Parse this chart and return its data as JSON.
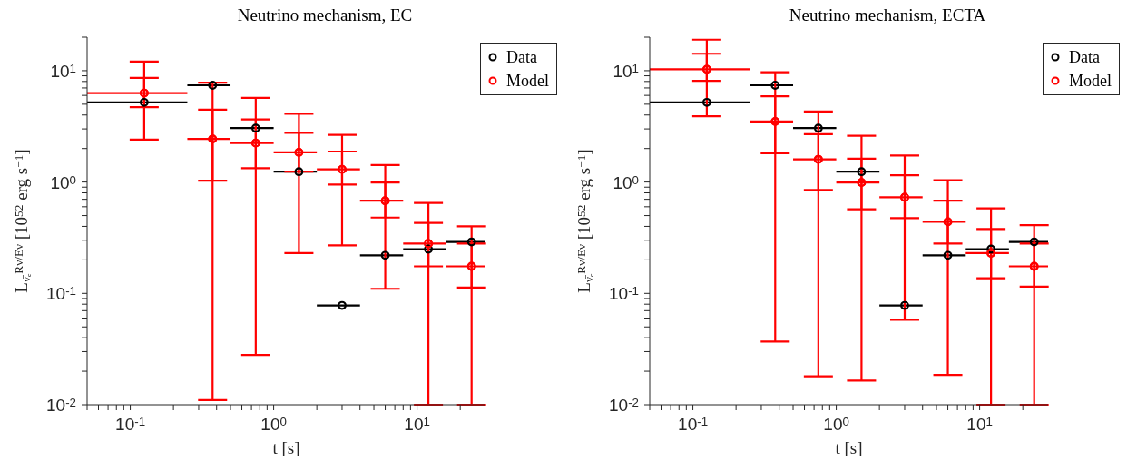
{
  "chart_data": [
    {
      "type": "scatter",
      "title": "Neutrino mechanism, EC",
      "xlabel": "t [s]",
      "ylabel": "L$_{ν̄ₑ}$$^{Rν/Eν}$ [10$^{52}$ erg s$^{−1}$]",
      "log": "xy",
      "legend": "top right",
      "xlim": [
        0.05,
        30
      ],
      "ylim": [
        0.01,
        20
      ],
      "xticks": [
        {
          "value": 0.05,
          "label": null
        },
        {
          "value": 0.06,
          "label": null
        },
        {
          "value": 0.07,
          "label": null
        },
        {
          "value": 0.08,
          "label": null
        },
        {
          "value": 0.09,
          "label": null
        },
        {
          "value": 0.1,
          "label": "10$^{-1}$"
        },
        {
          "value": 0.2,
          "label": null
        },
        {
          "value": 0.3,
          "label": null
        },
        {
          "value": 0.4,
          "label": null
        },
        {
          "value": 0.5,
          "label": null
        },
        {
          "value": 0.6,
          "label": null
        },
        {
          "value": 0.7,
          "label": null
        },
        {
          "value": 0.8,
          "label": null
        },
        {
          "value": 0.9,
          "label": null
        },
        {
          "value": 1,
          "label": "10$^{0}$"
        },
        {
          "value": 2,
          "label": null
        },
        {
          "value": 3,
          "label": null
        },
        {
          "value": 4,
          "label": null
        },
        {
          "value": 5,
          "label": null
        },
        {
          "value": 6,
          "label": null
        },
        {
          "value": 7,
          "label": null
        },
        {
          "value": 8,
          "label": null
        },
        {
          "value": 9,
          "label": null
        },
        {
          "value": 10,
          "label": "10$^{1}$"
        },
        {
          "value": 20,
          "label": null
        }
      ],
      "yticks": [
        {
          "value": 0.01,
          "label": "10$^{-2}$"
        },
        {
          "value": 0.02,
          "label": null
        },
        {
          "value": 0.03,
          "label": null
        },
        {
          "value": 0.04,
          "label": null
        },
        {
          "value": 0.05,
          "label": null
        },
        {
          "value": 0.06,
          "label": null
        },
        {
          "value": 0.07,
          "label": null
        },
        {
          "value": 0.08,
          "label": null
        },
        {
          "value": 0.09,
          "label": null
        },
        {
          "value": 0.1,
          "label": "10$^{-1}$"
        },
        {
          "value": 0.2,
          "label": null
        },
        {
          "value": 0.3,
          "label": null
        },
        {
          "value": 0.4,
          "label": null
        },
        {
          "value": 0.5,
          "label": null
        },
        {
          "value": 0.6,
          "label": null
        },
        {
          "value": 0.7,
          "label": null
        },
        {
          "value": 0.8,
          "label": null
        },
        {
          "value": 0.9,
          "label": null
        },
        {
          "value": 1,
          "label": "10$^{0}$"
        },
        {
          "value": 2,
          "label": null
        },
        {
          "value": 3,
          "label": null
        },
        {
          "value": 4,
          "label": null
        },
        {
          "value": 5,
          "label": null
        },
        {
          "value": 6,
          "label": null
        },
        {
          "value": 7,
          "label": null
        },
        {
          "value": 8,
          "label": null
        },
        {
          "value": 9,
          "label": null
        },
        {
          "value": 10,
          "label": "10$^{1}$"
        },
        {
          "value": 20,
          "label": null
        }
      ],
      "series": [
        {
          "name": "Data",
          "marker": "circle",
          "color": "#000000",
          "x": [
            0.125,
            0.375,
            0.75,
            1.5,
            3,
            6,
            12,
            24
          ],
          "values": [
            5.2,
            7.4,
            3.05,
            1.24,
            0.078,
            0.22,
            0.25,
            0.29
          ],
          "xerrors": [
            [
              0.05,
              0.25
            ],
            [
              0.25,
              0.5
            ],
            [
              0.5,
              1
            ],
            [
              1,
              2
            ],
            [
              2,
              4
            ],
            [
              4,
              8
            ],
            [
              8,
              16
            ],
            [
              16,
              30
            ]
          ]
        },
        {
          "name": "Model",
          "marker": "circle",
          "color": "#ff0000",
          "x": [
            0.125,
            0.375,
            0.75,
            1.5,
            3,
            6,
            12,
            24
          ],
          "values": [
            6.3,
            2.44,
            2.24,
            1.85,
            1.3,
            0.68,
            0.28,
            0.175
          ],
          "xerrors": [
            [
              0.05,
              0.25
            ],
            [
              0.25,
              0.5
            ],
            [
              0.5,
              1
            ],
            [
              1,
              2
            ],
            [
              2,
              4
            ],
            [
              4,
              8
            ],
            [
              8,
              16
            ],
            [
              16,
              30
            ]
          ],
          "errors": [
            [
              2.4,
              12.1
            ],
            [
              0.011,
              7.8
            ],
            [
              0.028,
              5.7
            ],
            [
              0.23,
              4.1
            ],
            [
              0.27,
              2.65
            ],
            [
              0.11,
              1.42
            ],
            [
              0.01,
              0.65
            ],
            [
              0.01,
              0.4
            ]
          ]
        },
        {
          "marker": "circle",
          "color": "#ff0000",
          "x": [
            0.125,
            0.375,
            0.75,
            1.5,
            3,
            6,
            12,
            24
          ],
          "values": [
            6.3,
            2.44,
            2.24,
            1.85,
            1.3,
            0.68,
            0.28,
            0.175
          ],
          "errors": [
            [
              4.7,
              8.6
            ],
            [
              1.03,
              4.47
            ],
            [
              1.33,
              3.65
            ],
            [
              1.24,
              2.77
            ],
            [
              0.95,
              1.88
            ],
            [
              0.48,
              0.99
            ],
            [
              0.175,
              0.43
            ],
            [
              0.113,
              0.28
            ]
          ]
        }
      ]
    },
    {
      "type": "scatter",
      "title": "Neutrino mechanism, ECTA",
      "xlabel": "t [s]",
      "ylabel": "L$_{ν̄ₑ}$$^{Rν/Eν}$ [10$^{52}$ erg s$^{−1}$]",
      "log": "xy",
      "legend": "top right",
      "xlim": [
        0.05,
        30
      ],
      "ylim": [
        0.01,
        20
      ],
      "xticks": [
        {
          "value": 0.05,
          "label": null
        },
        {
          "value": 0.06,
          "label": null
        },
        {
          "value": 0.07,
          "label": null
        },
        {
          "value": 0.08,
          "label": null
        },
        {
          "value": 0.09,
          "label": null
        },
        {
          "value": 0.1,
          "label": "10$^{-1}$"
        },
        {
          "value": 0.2,
          "label": null
        },
        {
          "value": 0.3,
          "label": null
        },
        {
          "value": 0.4,
          "label": null
        },
        {
          "value": 0.5,
          "label": null
        },
        {
          "value": 0.6,
          "label": null
        },
        {
          "value": 0.7,
          "label": null
        },
        {
          "value": 0.8,
          "label": null
        },
        {
          "value": 0.9,
          "label": null
        },
        {
          "value": 1,
          "label": "10$^{0}$"
        },
        {
          "value": 2,
          "label": null
        },
        {
          "value": 3,
          "label": null
        },
        {
          "value": 4,
          "label": null
        },
        {
          "value": 5,
          "label": null
        },
        {
          "value": 6,
          "label": null
        },
        {
          "value": 7,
          "label": null
        },
        {
          "value": 8,
          "label": null
        },
        {
          "value": 9,
          "label": null
        },
        {
          "value": 10,
          "label": "10$^{1}$"
        },
        {
          "value": 20,
          "label": null
        }
      ],
      "yticks": [
        {
          "value": 0.01,
          "label": "10$^{-2}$"
        },
        {
          "value": 0.02,
          "label": null
        },
        {
          "value": 0.03,
          "label": null
        },
        {
          "value": 0.04,
          "label": null
        },
        {
          "value": 0.05,
          "label": null
        },
        {
          "value": 0.06,
          "label": null
        },
        {
          "value": 0.07,
          "label": null
        },
        {
          "value": 0.08,
          "label": null
        },
        {
          "value": 0.09,
          "label": null
        },
        {
          "value": 0.1,
          "label": "10$^{-1}$"
        },
        {
          "value": 0.2,
          "label": null
        },
        {
          "value": 0.3,
          "label": null
        },
        {
          "value": 0.4,
          "label": null
        },
        {
          "value": 0.5,
          "label": null
        },
        {
          "value": 0.6,
          "label": null
        },
        {
          "value": 0.7,
          "label": null
        },
        {
          "value": 0.8,
          "label": null
        },
        {
          "value": 0.9,
          "label": null
        },
        {
          "value": 1,
          "label": "10$^{0}$"
        },
        {
          "value": 2,
          "label": null
        },
        {
          "value": 3,
          "label": null
        },
        {
          "value": 4,
          "label": null
        },
        {
          "value": 5,
          "label": null
        },
        {
          "value": 6,
          "label": null
        },
        {
          "value": 7,
          "label": null
        },
        {
          "value": 8,
          "label": null
        },
        {
          "value": 9,
          "label": null
        },
        {
          "value": 10,
          "label": "10$^{1}$"
        },
        {
          "value": 20,
          "label": null
        }
      ],
      "series": [
        {
          "name": "Data",
          "marker": "circle",
          "color": "#000000",
          "x": [
            0.125,
            0.375,
            0.75,
            1.5,
            3,
            6,
            12,
            24
          ],
          "values": [
            5.2,
            7.4,
            3.05,
            1.24,
            0.078,
            0.22,
            0.25,
            0.29
          ],
          "xerrors": [
            [
              0.05,
              0.25
            ],
            [
              0.25,
              0.5
            ],
            [
              0.5,
              1
            ],
            [
              1,
              2
            ],
            [
              2,
              4
            ],
            [
              4,
              8
            ],
            [
              8,
              16
            ],
            [
              16,
              30
            ]
          ]
        },
        {
          "name": "Model",
          "marker": "circle",
          "color": "#ff0000",
          "x": [
            0.125,
            0.375,
            0.75,
            1.5,
            3,
            6,
            12,
            24
          ],
          "values": [
            10.3,
            3.5,
            1.6,
            0.99,
            0.73,
            0.44,
            0.23,
            0.175
          ],
          "xerrors": [
            [
              0.05,
              0.25
            ],
            [
              0.25,
              0.5
            ],
            [
              0.5,
              1
            ],
            [
              1,
              2
            ],
            [
              2,
              4
            ],
            [
              4,
              8
            ],
            [
              8,
              16
            ],
            [
              16,
              30
            ]
          ],
          "errors": [
            [
              3.9,
              19
            ],
            [
              0.037,
              9.7
            ],
            [
              0.018,
              4.3
            ],
            [
              0.0165,
              2.6
            ],
            [
              0.058,
              1.73
            ],
            [
              0.0185,
              1.04
            ],
            [
              0.01,
              0.58
            ],
            [
              0.01,
              0.41
            ]
          ]
        },
        {
          "marker": "circle",
          "color": "#ff0000",
          "x": [
            0.125,
            0.375,
            0.75,
            1.5,
            3,
            6,
            12,
            24
          ],
          "values": [
            10.3,
            3.5,
            1.6,
            0.99,
            0.73,
            0.44,
            0.23,
            0.175
          ],
          "errors": [
            [
              8.1,
              14.2
            ],
            [
              1.81,
              5.9
            ],
            [
              0.85,
              2.69
            ],
            [
              0.57,
              1.62
            ],
            [
              0.475,
              1.15
            ],
            [
              0.28,
              0.68
            ],
            [
              0.137,
              0.378
            ],
            [
              0.115,
              0.28
            ]
          ]
        }
      ]
    }
  ]
}
